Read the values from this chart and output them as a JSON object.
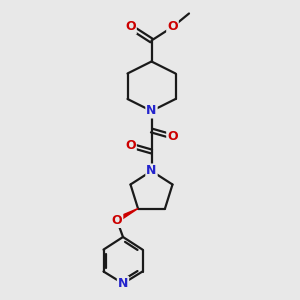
{
  "bg_color": "#e8e8e8",
  "bond_color": "#1a1a1a",
  "N_color": "#2424cc",
  "O_color": "#cc0000",
  "bond_width": 1.6,
  "figsize": [
    3.0,
    3.0
  ],
  "dpi": 100,
  "xlim": [
    0,
    10
  ],
  "ylim": [
    0,
    10
  ]
}
